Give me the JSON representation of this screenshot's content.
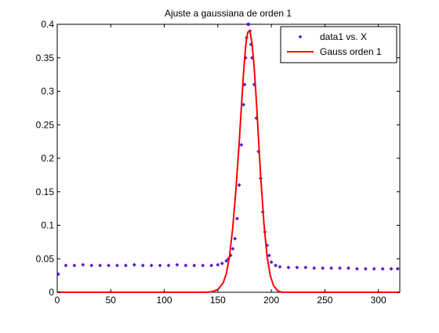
{
  "chart_data": {
    "type": "scatter",
    "title": "Ajuste a gaussiana de orden 1",
    "xlabel": "",
    "ylabel": "",
    "xlim": [
      0,
      320
    ],
    "ylim": [
      0,
      0.4
    ],
    "xticks": [
      "0",
      "50",
      "100",
      "150",
      "200",
      "250",
      "300"
    ],
    "yticks": [
      "0",
      "0.05",
      "0.1",
      "0.15",
      "0.2",
      "0.25",
      "0.3",
      "0.35",
      "0.4"
    ],
    "grid": false,
    "legend_position": "top-right",
    "series": [
      {
        "name": "data1 vs. X",
        "kind": "scatter",
        "color": "#5a18c8",
        "x": [
          1,
          8,
          16,
          24,
          32,
          40,
          48,
          56,
          64,
          72,
          80,
          88,
          96,
          104,
          112,
          120,
          128,
          136,
          144,
          150,
          154,
          158,
          160,
          162,
          164,
          166,
          168,
          170,
          172,
          174,
          175,
          176,
          177,
          178,
          179,
          180,
          181,
          182,
          184,
          186,
          188,
          190,
          192,
          194,
          196,
          198,
          200,
          204,
          208,
          216,
          224,
          232,
          240,
          248,
          256,
          264,
          272,
          280,
          288,
          296,
          304,
          312,
          318
        ],
        "y": [
          0.027,
          0.04,
          0.04,
          0.041,
          0.04,
          0.04,
          0.04,
          0.04,
          0.04,
          0.041,
          0.04,
          0.04,
          0.04,
          0.04,
          0.041,
          0.04,
          0.04,
          0.04,
          0.04,
          0.041,
          0.043,
          0.047,
          0.05,
          0.055,
          0.065,
          0.08,
          0.11,
          0.16,
          0.22,
          0.28,
          0.31,
          0.35,
          0.38,
          0.4,
          0.4,
          0.39,
          0.37,
          0.35,
          0.31,
          0.26,
          0.21,
          0.17,
          0.12,
          0.09,
          0.07,
          0.055,
          0.045,
          0.04,
          0.038,
          0.037,
          0.037,
          0.037,
          0.036,
          0.036,
          0.036,
          0.036,
          0.036,
          0.035,
          0.035,
          0.035,
          0.035,
          0.035,
          0.035
        ]
      },
      {
        "name": "Gauss orden 1",
        "kind": "line",
        "color": "#ff0000",
        "x": [
          0,
          20,
          40,
          60,
          80,
          100,
          120,
          140,
          145,
          150,
          155,
          158,
          161,
          164,
          167,
          170,
          172,
          174,
          176,
          177,
          178,
          180,
          182,
          184,
          186,
          188,
          190,
          193,
          196,
          199,
          202,
          206,
          210,
          220,
          240,
          260,
          280,
          300,
          320
        ],
        "y": [
          0,
          0,
          0,
          0,
          0,
          0,
          0,
          0,
          0.001,
          0.004,
          0.014,
          0.028,
          0.055,
          0.097,
          0.155,
          0.224,
          0.276,
          0.327,
          0.367,
          0.38,
          0.388,
          0.39,
          0.371,
          0.335,
          0.286,
          0.23,
          0.174,
          0.104,
          0.054,
          0.025,
          0.01,
          0.002,
          0,
          0,
          0,
          0,
          0,
          0,
          0
        ]
      }
    ]
  }
}
